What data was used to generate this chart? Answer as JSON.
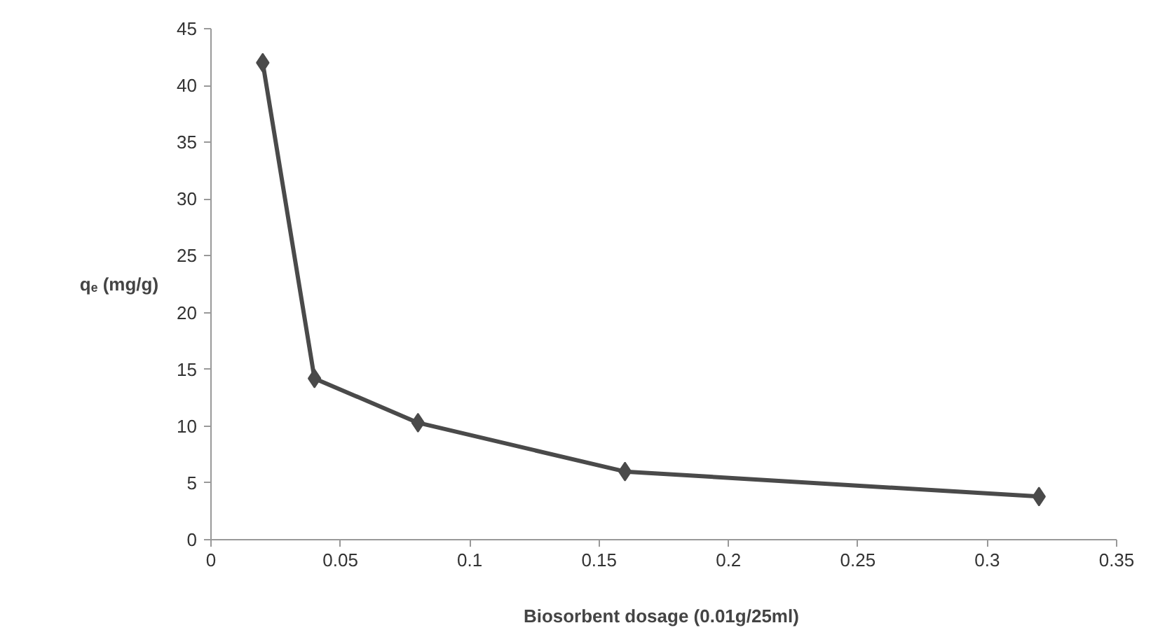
{
  "chart_data": {
    "type": "line",
    "xlabel": "Biosorbent dosage  (0.01g/25ml)",
    "ylabel": "qₑ (mg/g)",
    "x": [
      0.02,
      0.04,
      0.08,
      0.16,
      0.32
    ],
    "series": [
      {
        "color": "#4a4a4a",
        "values": [
          42,
          14.2,
          10.3,
          6,
          3.8
        ]
      }
    ],
    "xlim": [
      0,
      0.35
    ],
    "xticks": [
      0,
      0.05,
      0.1,
      0.15,
      0.2,
      0.25,
      0.3,
      0.35
    ],
    "ylim": [
      0,
      45
    ],
    "yticks": [
      0,
      5,
      10,
      15,
      20,
      25,
      30,
      35,
      40,
      45
    ],
    "grid": false,
    "marker": "diamond",
    "line_style": "solid"
  }
}
